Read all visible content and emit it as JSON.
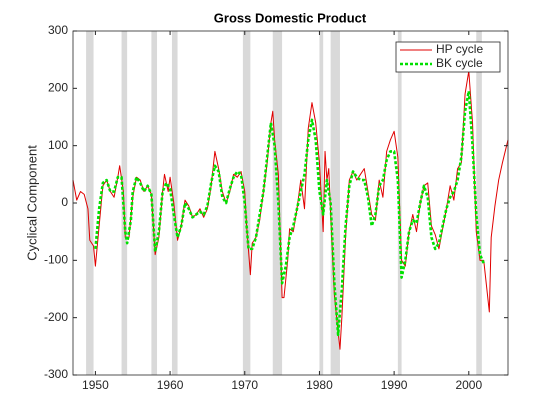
{
  "chart_data": {
    "type": "line",
    "title": "Gross Domestic Product",
    "ylabel": "Cyclical Component",
    "xlim": [
      1947,
      2005.25
    ],
    "ylim": [
      -300,
      300
    ],
    "xticks": [
      1950,
      1960,
      1970,
      1980,
      1990,
      2000
    ],
    "yticks": [
      -300,
      -200,
      -100,
      0,
      100,
      200,
      300
    ],
    "grid": false,
    "legend": "upper right",
    "shade_color": "#d9d9d9",
    "shaded_regions": [
      [
        1948.75,
        1949.75
      ],
      [
        1953.5,
        1954.25
      ],
      [
        1957.5,
        1958.25
      ],
      [
        1960.25,
        1961
      ],
      [
        1969.75,
        1970.75
      ],
      [
        1973.75,
        1975
      ],
      [
        1980,
        1980.5
      ],
      [
        1981.5,
        1982.75
      ],
      [
        1990.5,
        1991
      ],
      [
        2001,
        2001.75
      ]
    ],
    "series": [
      {
        "name": "HP cycle",
        "color": "#e00000",
        "style": "solid",
        "x": [
          1947,
          1947.5,
          1948,
          1948.5,
          1949,
          1949.25,
          1949.75,
          1950,
          1950.5,
          1951,
          1951.5,
          1952,
          1952.5,
          1953,
          1953.25,
          1953.75,
          1954,
          1954.5,
          1955,
          1955.5,
          1956,
          1956.5,
          1957,
          1957.5,
          1958,
          1958.5,
          1959,
          1959.25,
          1959.75,
          1960,
          1960.5,
          1961,
          1961.5,
          1962,
          1962.5,
          1963,
          1963.5,
          1964,
          1964.5,
          1965,
          1965.5,
          1966,
          1966.5,
          1967,
          1967.5,
          1968,
          1968.5,
          1969,
          1969.5,
          1970,
          1970.25,
          1970.75,
          1971,
          1971.5,
          1972,
          1972.5,
          1973,
          1973.5,
          1973.75,
          1974,
          1974.5,
          1975,
          1975.25,
          1975.75,
          1976,
          1976.5,
          1977,
          1977.5,
          1978,
          1978.5,
          1979,
          1979.5,
          1980,
          1980.5,
          1980.75,
          1981,
          1981.25,
          1981.5,
          1982,
          1982.5,
          1982.75,
          1983,
          1983.5,
          1984,
          1984.5,
          1985,
          1985.5,
          1986,
          1986.5,
          1987,
          1987.5,
          1988,
          1988.5,
          1989,
          1989.5,
          1990,
          1990.5,
          1991,
          1991.5,
          1992,
          1992.5,
          1993,
          1993.5,
          1994,
          1994.5,
          1995,
          1995.5,
          1996,
          1996.5,
          1997,
          1997.5,
          1998,
          1998.5,
          1999,
          1999.5,
          2000,
          2000.5,
          2001,
          2001.5,
          2002,
          2002.5,
          2002.75,
          2003,
          2003.5,
          2004,
          2004.5,
          2005.25
        ],
        "values": [
          40,
          5,
          20,
          15,
          -10,
          -65,
          -75,
          -110,
          -40,
          30,
          40,
          20,
          10,
          45,
          65,
          20,
          -60,
          -60,
          10,
          45,
          40,
          20,
          30,
          15,
          -90,
          -60,
          20,
          50,
          20,
          45,
          0,
          -65,
          -40,
          5,
          -5,
          -25,
          -20,
          -10,
          -25,
          -10,
          30,
          90,
          60,
          20,
          0,
          20,
          50,
          45,
          55,
          20,
          -40,
          -125,
          -70,
          -60,
          -30,
          20,
          70,
          140,
          160,
          110,
          50,
          -165,
          -165,
          -100,
          -45,
          -50,
          -10,
          40,
          -10,
          130,
          175,
          140,
          70,
          -50,
          90,
          40,
          60,
          -20,
          -160,
          -225,
          -255,
          -200,
          -60,
          40,
          55,
          40,
          50,
          60,
          20,
          -20,
          -30,
          40,
          10,
          90,
          110,
          125,
          80,
          -100,
          -110,
          -50,
          -20,
          -50,
          0,
          30,
          35,
          -40,
          -55,
          -80,
          -45,
          -10,
          30,
          5,
          60,
          70,
          190,
          230,
          140,
          -50,
          -100,
          -100,
          -160,
          -190,
          -60,
          -5,
          40,
          70,
          110
        ]
      },
      {
        "name": "BK cycle",
        "color": "#00e000",
        "style": "dotted",
        "x": [
          1950,
          1950.5,
          1951,
          1951.5,
          1952,
          1952.5,
          1953,
          1953.5,
          1954,
          1954.25,
          1954.75,
          1955,
          1955.5,
          1956,
          1956.5,
          1957,
          1957.5,
          1958,
          1958.5,
          1959,
          1959.5,
          1960,
          1960.5,
          1961,
          1961.5,
          1962,
          1962.5,
          1963,
          1963.5,
          1964,
          1964.5,
          1965,
          1965.5,
          1966,
          1966.5,
          1967,
          1967.5,
          1968,
          1968.5,
          1969,
          1969.5,
          1970,
          1970.5,
          1971,
          1971.5,
          1972,
          1972.5,
          1973,
          1973.5,
          1974,
          1974.5,
          1975,
          1975.5,
          1976,
          1976.5,
          1977,
          1977.5,
          1978,
          1978.5,
          1979,
          1979.5,
          1980,
          1980.5,
          1981,
          1981.5,
          1982,
          1982.5,
          1983,
          1983.5,
          1984,
          1984.5,
          1985,
          1985.5,
          1986,
          1986.5,
          1987,
          1987.5,
          1988,
          1988.5,
          1989,
          1989.5,
          1990,
          1990.5,
          1991,
          1991.5,
          1992,
          1992.5,
          1993,
          1993.5,
          1994,
          1994.5,
          1995,
          1995.5,
          1996,
          1996.5,
          1997,
          1997.5,
          1998,
          1998.5,
          1999,
          1999.5,
          2000,
          2000.5,
          2001,
          2001.5,
          2002
        ],
        "values": [
          -80,
          -10,
          35,
          40,
          20,
          20,
          45,
          45,
          -50,
          -70,
          -30,
          20,
          45,
          35,
          20,
          30,
          15,
          -85,
          -50,
          20,
          35,
          25,
          -20,
          -60,
          -40,
          0,
          -10,
          -25,
          -20,
          -15,
          -20,
          -5,
          35,
          65,
          55,
          10,
          0,
          25,
          45,
          55,
          50,
          0,
          -80,
          -80,
          -60,
          -20,
          20,
          80,
          140,
          100,
          0,
          -140,
          -110,
          -60,
          -40,
          -10,
          20,
          50,
          110,
          145,
          110,
          20,
          -20,
          40,
          0,
          -140,
          -230,
          -150,
          -40,
          30,
          55,
          45,
          40,
          40,
          10,
          -40,
          -20,
          30,
          40,
          75,
          90,
          90,
          40,
          -130,
          -100,
          -50,
          -30,
          -35,
          0,
          30,
          10,
          -60,
          -80,
          -70,
          -40,
          -10,
          10,
          20,
          40,
          80,
          160,
          195,
          100,
          -20,
          -90,
          -105
        ]
      }
    ]
  }
}
